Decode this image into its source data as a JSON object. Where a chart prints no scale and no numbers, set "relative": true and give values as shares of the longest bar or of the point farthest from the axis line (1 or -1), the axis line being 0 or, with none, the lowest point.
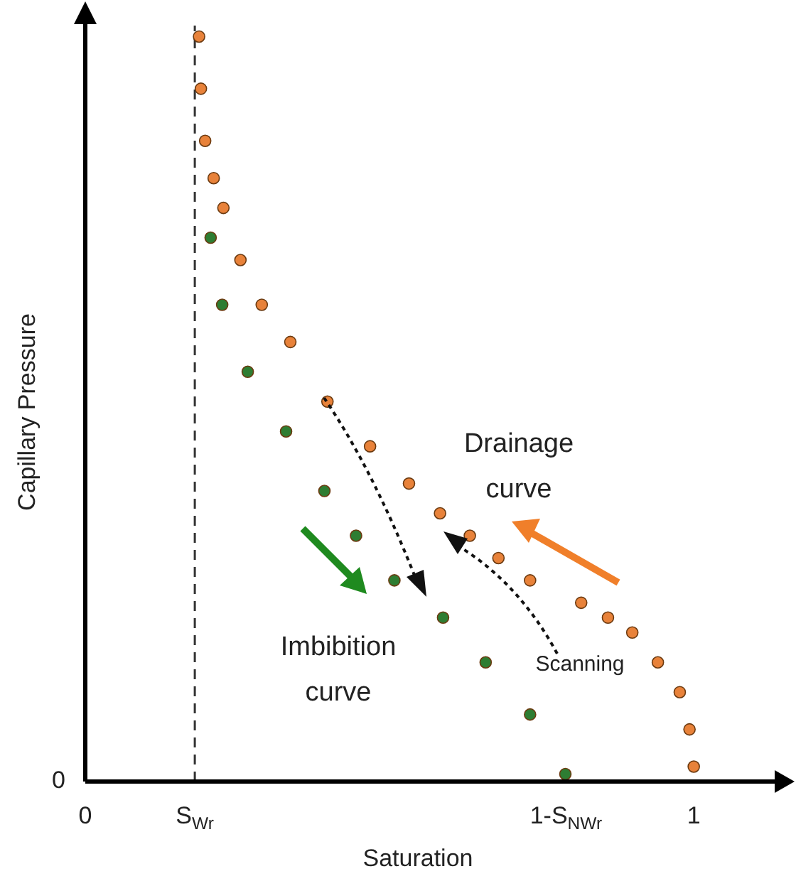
{
  "chart_data": {
    "type": "scatter",
    "relative": true,
    "xlabel": "Saturation",
    "ylabel": "Capillary Pressure",
    "marker": "circle",
    "legend": false,
    "grid": false,
    "xlim": [
      0,
      1.14
    ],
    "xticks": [
      0,
      {
        "value": 0.18,
        "label": "S$_{Wr}$"
      },
      {
        "value": 0.79,
        "label": "1-S$_{NWr}$"
      },
      1
    ],
    "ref_lines": [
      {
        "axis": "x",
        "value": 0.18,
        "line_style": "dashed",
        "color": "#333333"
      }
    ],
    "annotations": [
      "0",
      "Drainage curve",
      "Imbibition curve",
      "Scanning"
    ],
    "series": [
      {
        "color": "#e8823a",
        "x": [
          0.187,
          0.19,
          0.197,
          0.211,
          0.227,
          0.255,
          0.29,
          0.337,
          0.398,
          0.468,
          0.532,
          0.583,
          0.632,
          0.679,
          0.731,
          0.815,
          0.859,
          0.899,
          0.941,
          0.977,
          0.993,
          1.0
        ],
        "values": [
          1.0,
          0.93,
          0.86,
          0.81,
          0.77,
          0.7,
          0.64,
          0.59,
          0.51,
          0.45,
          0.4,
          0.36,
          0.33,
          0.3,
          0.27,
          0.24,
          0.22,
          0.2,
          0.16,
          0.12,
          0.07,
          0.02
        ]
      },
      {
        "color": "#2e7d32",
        "x": [
          0.206,
          0.225,
          0.267,
          0.33,
          0.393,
          0.445,
          0.508,
          0.588,
          0.658,
          0.731,
          0.789
        ],
        "values": [
          0.73,
          0.64,
          0.55,
          0.47,
          0.39,
          0.33,
          0.27,
          0.22,
          0.16,
          0.09,
          0.01
        ]
      }
    ]
  }
}
